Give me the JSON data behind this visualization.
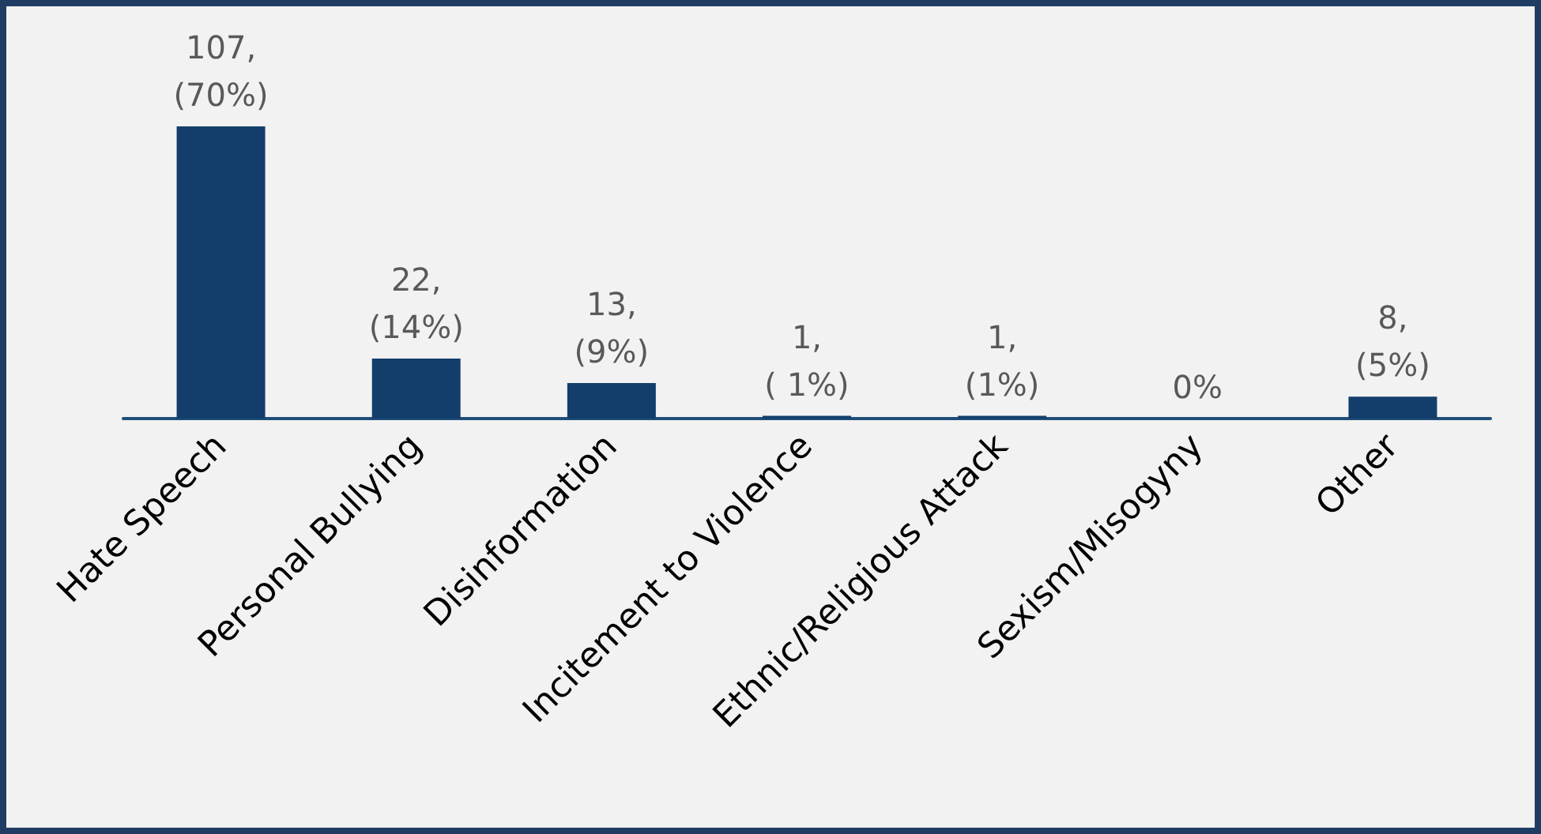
{
  "chart_data": {
    "type": "bar",
    "categories": [
      "Hate Speech",
      "Personal Bullying",
      "Disinformation",
      "Incitement to Violence",
      "Ethnic/Religious Attack",
      "Sexism/Misogyny",
      "Other"
    ],
    "values": [
      107,
      22,
      13,
      1,
      1,
      0,
      8
    ],
    "color": "#133e6b",
    "value_labels": [
      "107,\n(70%)",
      "22,\n(14%)",
      "13,\n(9%)",
      "1,\n( 1%)",
      "1,\n(1%)",
      "0%",
      "8,\n(5%)"
    ],
    "tick_labels": "x"
  }
}
